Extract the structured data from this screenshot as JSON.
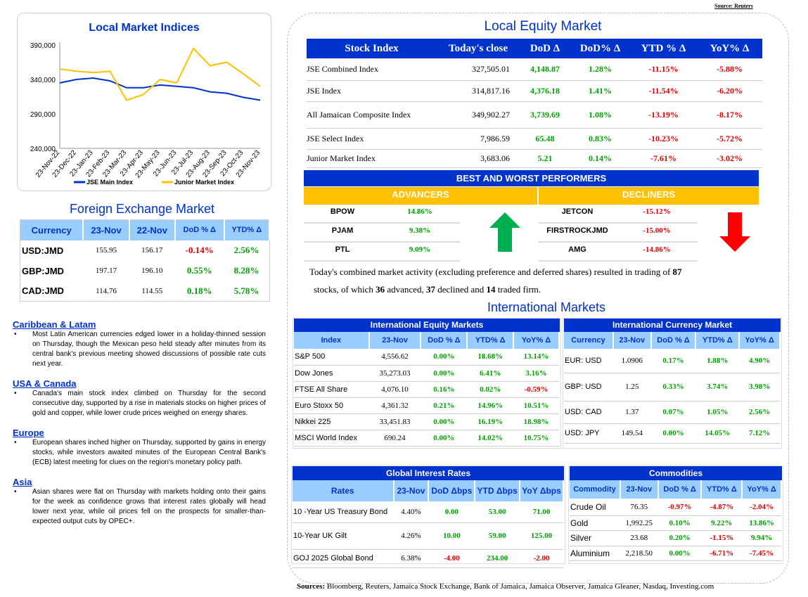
{
  "source_top": "Source: Reuters",
  "chart": {
    "title": "Local Market Indices",
    "legend": [
      "JSE Main Index",
      "Junior Market Index"
    ],
    "colors": {
      "main": "#0033cc",
      "junior": "#ffc000"
    }
  },
  "chart_data": {
    "type": "line",
    "title": "Local Market Indices",
    "x": [
      "23-Nov-22",
      "23-Dec-22",
      "23-Jan-23",
      "23-Feb-23",
      "23-Mar-23",
      "23-Apr-23",
      "23-May-23",
      "23-Jun-23",
      "23-Jul-23",
      "23-Aug-23",
      "23-Sep-23",
      "23-Oct-23",
      "23-Nov-23"
    ],
    "ylim": [
      240000,
      390000
    ],
    "yticks": [
      "240,000",
      "290,000",
      "340,000",
      "390,000"
    ],
    "series": [
      {
        "name": "JSE Main Index",
        "values": [
          335000,
          340000,
          342000,
          338000,
          328000,
          328000,
          332000,
          330000,
          328000,
          322000,
          320000,
          314000,
          310000
        ]
      },
      {
        "name": "Junior Market Index",
        "values": [
          355000,
          352000,
          350000,
          352000,
          310000,
          318000,
          340000,
          335000,
          385000,
          360000,
          365000,
          348000,
          330000
        ]
      }
    ],
    "legend": "bottom"
  },
  "fx": {
    "title": "Foreign Exchange Market",
    "headers": [
      "Currency",
      "23-Nov",
      "22-Nov",
      "DoD % Δ",
      "YTD% Δ"
    ],
    "rows": [
      [
        "USD:JMD",
        "155.95",
        "156.17",
        "-0.14%",
        "2.56%"
      ],
      [
        "GBP:JMD",
        "197.17",
        "196.10",
        "0.55%",
        "8.28%"
      ],
      [
        "CAD:JMD",
        "114.76",
        "114.55",
        "0.18%",
        "5.78%"
      ]
    ]
  },
  "news": [
    {
      "head": "Caribbean & Latam",
      "text": "Most Latin American currencies edged lower in a holiday-thinned session on Thursday, though the Mexican peso held steady after minutes from its central bank's previous meeting showed discussions of possible rate cuts next year."
    },
    {
      "head": "USA & Canada",
      "text": "Canada's main stock index climbed on Thursday for the second consecutive day, supported by a rise in materials stocks on higher prices of gold and copper, while lower crude prices weighed on energy shares."
    },
    {
      "head": "Europe",
      "text": "European shares inched higher on Thursday, supported by gains in energy stocks, while investors awaited minutes of the European Central Bank's (ECB) latest meeting for clues on the region's monetary policy path."
    },
    {
      "head": "Asia",
      "text": "Asian shares were flat on Thursday with markets holding onto their gains for the week as confidence grows that interest rates globally will head lower next year, while oil prices fell on the prospects for smaller-than-expected output cuts by OPEC+."
    }
  ],
  "equity": {
    "title": "Local Equity Market",
    "headers": [
      "Stock Index",
      "Today's close",
      "DoD Δ",
      "DoD% Δ",
      "YTD % Δ",
      "YoY% Δ"
    ],
    "rows": [
      [
        "JSE Combined Index",
        "327,505.01",
        "4,148.87",
        "1.28%",
        "-11.15%",
        "-5.88%"
      ],
      [
        "JSE Index",
        "314,817.16",
        "4,376.18",
        "1.41%",
        "-11.54%",
        "-6.20%"
      ],
      [
        "All Jamaican Composite Index",
        "349,902.27",
        "3,739.69",
        "1.08%",
        "-13.19%",
        "-8.17%"
      ],
      [
        "JSE Select Index",
        "7,986.59",
        "65.48",
        "0.83%",
        "-10.23%",
        "-5.72%"
      ],
      [
        "Junior Market Index",
        "3,683.06",
        "5.21",
        "0.14%",
        "-7.61%",
        "-3.02%"
      ]
    ]
  },
  "performers": {
    "title": "BEST AND WORST PERFORMERS",
    "adv_label": "ADVANCERS",
    "dec_label": "DECLINERS",
    "advancers": [
      [
        "BPOW",
        "14.86%"
      ],
      [
        "PJAM",
        "9.38%"
      ],
      [
        "PTL",
        "9.09%"
      ]
    ],
    "decliners": [
      [
        "JETCON",
        "-15.12%"
      ],
      [
        "FIRSTROCKJMD",
        "-15.00%"
      ],
      [
        "AMG",
        "-14.86%"
      ]
    ]
  },
  "summary": {
    "pre": "Today's combined market activity (excluding preference and deferred shares) resulted in trading of ",
    "total": "87",
    "mid1": " stocks, of which ",
    "adv": "36",
    "mid2": " advanced, ",
    "dec": "37",
    "mid3": " declined and ",
    "firm": "14",
    "post": " traded firm."
  },
  "intl": {
    "title": "International Markets",
    "equity_title": "International Equity Markets",
    "equity_headers": [
      "Index",
      "23-Nov",
      "DoD % Δ",
      "YTD% Δ",
      "YoY% Δ"
    ],
    "equity_rows": [
      [
        "S&P 500",
        "4,556.62",
        "0.00%",
        "18.68%",
        "13.14%"
      ],
      [
        "Dow Jones",
        "35,273.03",
        "0.00%",
        "6.41%",
        "3.16%"
      ],
      [
        "FTSE All Share",
        "4,076.10",
        "0.16%",
        "0.02%",
        "-0.59%"
      ],
      [
        "Euro Stoxx 50",
        "4,361.32",
        "0.21%",
        "14.96%",
        "10.51%"
      ],
      [
        "Nikkei 225",
        "33,451.83",
        "0.00%",
        "16.19%",
        "18.98%"
      ],
      [
        "MSCI World Index",
        "690.24",
        "0.00%",
        "14.02%",
        "10.75%"
      ]
    ],
    "currency_title": "International Currency Market",
    "currency_headers": [
      "Currency",
      "23-Nov",
      "DoD % Δ",
      "YTD% Δ",
      "YoY% Δ"
    ],
    "currency_rows": [
      [
        "EUR: USD",
        "1.0906",
        "0.17%",
        "1.88%",
        "4.90%"
      ],
      [
        "GBP: USD",
        "1.25",
        "0.33%",
        "3.74%",
        "3.98%"
      ],
      [
        "USD: CAD",
        "1.37",
        "0.07%",
        "1.05%",
        "2.56%"
      ],
      [
        "USD: JPY",
        "149.54",
        "0.00%",
        "14.05%",
        "7.12%"
      ]
    ],
    "rates_title": "Global Interest Rates",
    "rates_headers": [
      "Rates",
      "23-Nov",
      "DoD Δbps",
      "YTD Δbps",
      "YoY Δbps"
    ],
    "rates_rows": [
      [
        "10 -Year US Treasury Bond",
        "4.40%",
        "0.00",
        "53.00",
        "71.00"
      ],
      [
        "10-Year UK Gilt",
        "4.26%",
        "10.00",
        "59.00",
        "125.00"
      ],
      [
        "GOJ 2025 Global Bond",
        "6.38%",
        "-4.00",
        "234.00",
        "-2.00"
      ]
    ],
    "comm_title": "Commodities",
    "comm_headers": [
      "Commodity",
      "23-Nov",
      "DoD % Δ",
      "YTD% Δ",
      "YoY% Δ"
    ],
    "comm_rows": [
      [
        "Crude Oil",
        "76.35",
        "-0.97%",
        "-4.87%",
        "-2.04%"
      ],
      [
        "Gold",
        "1,992.25",
        "0.10%",
        "9.22%",
        "13.86%"
      ],
      [
        "Silver",
        "23.68",
        "0.20%",
        "-1.15%",
        "9.94%"
      ],
      [
        "Aluminium",
        "2,218.50",
        "0.00%",
        "-6.71%",
        "-7.45%"
      ]
    ]
  },
  "sources_label": "Sources:",
  "sources_text": " Bloomberg, Reuters, Jamaica Stock Exchange, Bank of Jamaica, Jamaica Observer, Jamaica Gleaner, Nasdaq, Investing.com"
}
